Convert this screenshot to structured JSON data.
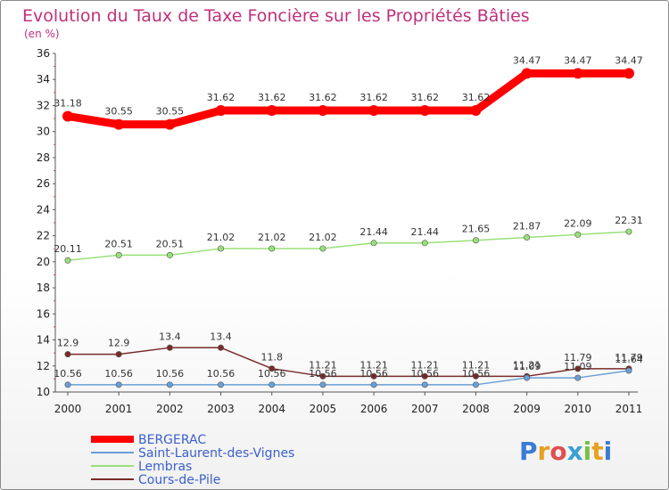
{
  "chart_data": {
    "type": "line",
    "title": "Evolution du Taux de Taxe Foncière sur les Propriétés Bâties",
    "ylabel": "(en %)",
    "xlabel": "",
    "ylim": [
      10,
      36
    ],
    "yticks": [
      10,
      12,
      14,
      16,
      18,
      20,
      22,
      24,
      26,
      28,
      30,
      32,
      34,
      36
    ],
    "categories": [
      "2000",
      "2001",
      "2002",
      "2003",
      "2004",
      "2005",
      "2006",
      "2007",
      "2008",
      "2009",
      "2010",
      "2011"
    ],
    "series": [
      {
        "name": "BERGERAC",
        "color": "#ff0000",
        "values": [
          31.18,
          30.55,
          30.55,
          31.62,
          31.62,
          31.62,
          31.62,
          31.62,
          31.62,
          34.47,
          34.47,
          34.47
        ],
        "labels": [
          "31.18",
          "30.55",
          "30.55",
          "31.62",
          "31.62",
          "31.62",
          "31.62",
          "31.62",
          "31.62",
          "34.47",
          "34.47",
          "34.47"
        ]
      },
      {
        "name": "Saint-Laurent-des-Vignes",
        "color": "#6a9fd4",
        "values": [
          10.56,
          10.56,
          10.56,
          10.56,
          10.56,
          10.56,
          10.56,
          10.56,
          10.56,
          11.09,
          11.09,
          11.64
        ],
        "labels": [
          "10.56",
          "10.56",
          "10.56",
          "10.56",
          "10.56",
          "10.56",
          "10.56",
          "10.56",
          "10.56",
          "11.09",
          "11.09",
          "11.64"
        ]
      },
      {
        "name": "Lembras",
        "color": "#99e07a",
        "values": [
          20.11,
          20.51,
          20.51,
          21.02,
          21.02,
          21.02,
          21.44,
          21.44,
          21.65,
          21.87,
          22.09,
          22.31
        ],
        "labels": [
          "20.11",
          "20.51",
          "20.51",
          "21.02",
          "21.02",
          "21.02",
          "21.44",
          "21.44",
          "21.65",
          "21.87",
          "22.09",
          "22.31"
        ]
      },
      {
        "name": "Cours-de-Pile",
        "color": "#7a2a2a",
        "values": [
          12.9,
          12.9,
          13.4,
          13.4,
          11.8,
          11.21,
          11.21,
          11.21,
          11.21,
          11.21,
          11.79,
          11.79
        ],
        "labels": [
          "12.9",
          "12.9",
          "13.4",
          "13.4",
          "11.8",
          "11.21",
          "11.21",
          "11.21",
          "11.21",
          "11.21",
          "11.79",
          "11.79"
        ]
      }
    ],
    "legend": {
      "position": "bottom-left",
      "items": [
        "BERGERAC",
        "Saint-Laurent-des-Vignes",
        "Lembras",
        "Cours-de-Pile"
      ]
    }
  },
  "logo": {
    "letters": [
      "P",
      "r",
      "o",
      "x",
      "i",
      "t",
      "i"
    ],
    "colors": [
      "#3a7bd5",
      "#e8a020",
      "#e05050",
      "#3aa0d5",
      "#7ac040",
      "#e8a020",
      "#3a7bd5"
    ]
  }
}
